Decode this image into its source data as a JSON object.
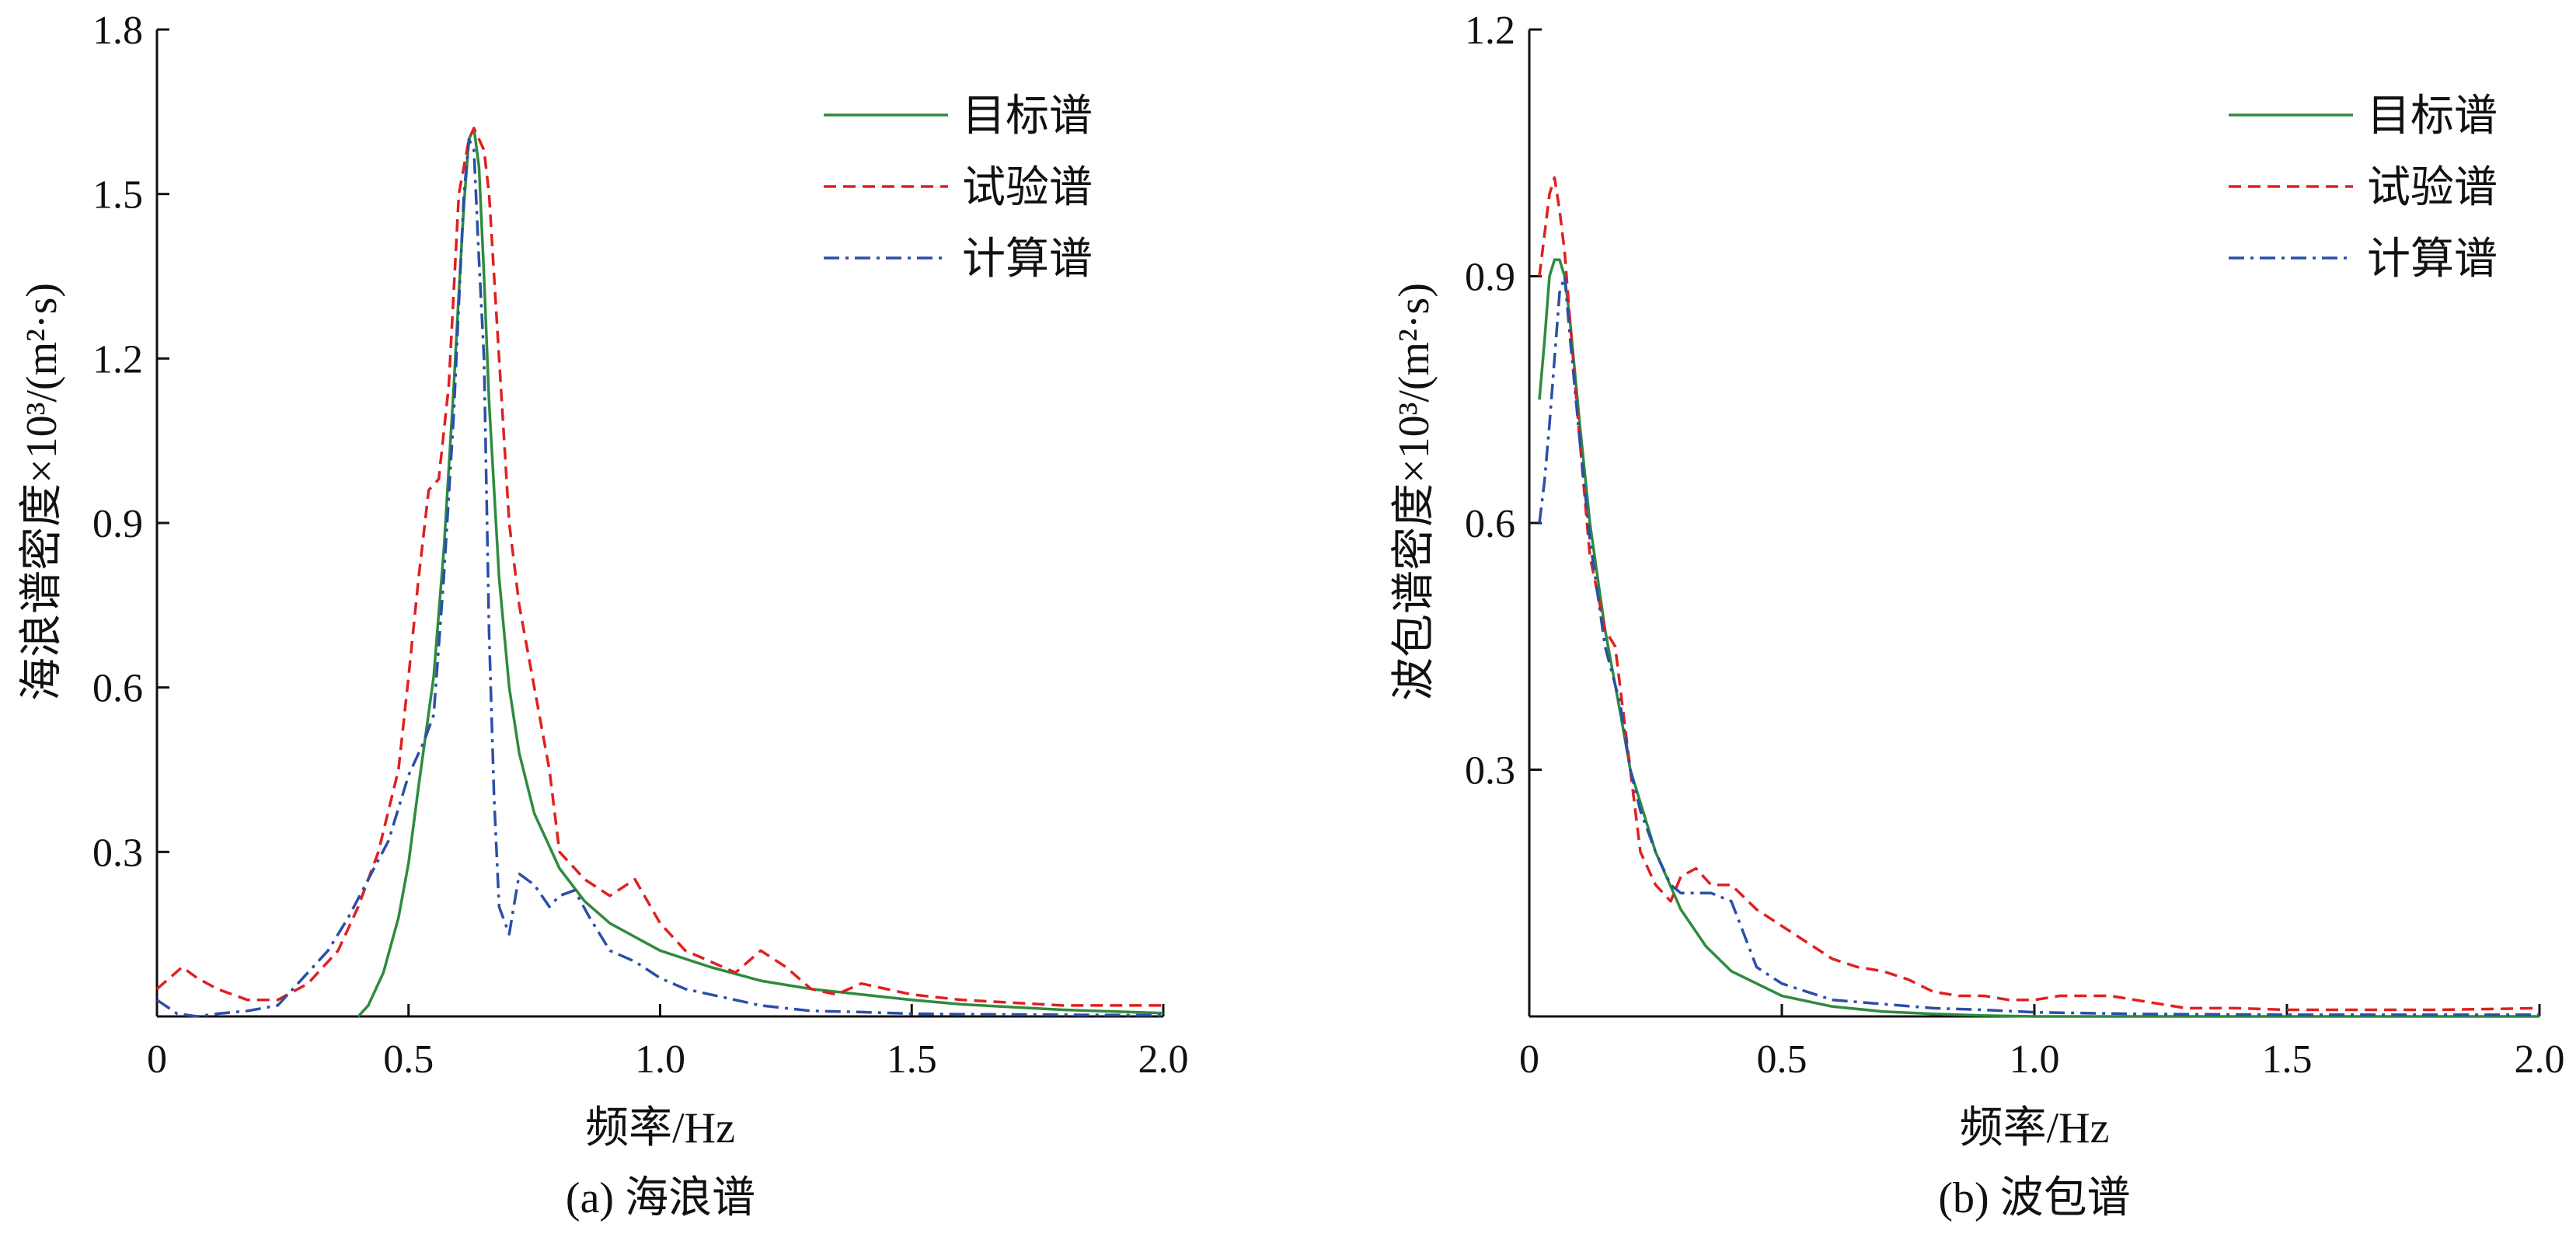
{
  "chart_data": [
    {
      "type": "line",
      "panel_label": "(a) 海浪谱",
      "xlabel": "频率/Hz",
      "ylabel": "海浪谱密度×10³/(m²·s)",
      "xlim": [
        0,
        2.0
      ],
      "ylim": [
        0,
        1.8
      ],
      "xticks": [
        "0",
        "0.5",
        "1.0",
        "1.5",
        "2.0"
      ],
      "yticks": [
        "0.3",
        "0.6",
        "0.9",
        "1.2",
        "1.5",
        "1.8"
      ],
      "legend": [
        "目标谱",
        "试验谱",
        "计算谱"
      ],
      "series": [
        {
          "name": "目标谱",
          "color": "#2e8b3e",
          "dash": "solid",
          "x": [
            0.4,
            0.42,
            0.45,
            0.48,
            0.5,
            0.52,
            0.55,
            0.57,
            0.59,
            0.6,
            0.61,
            0.62,
            0.63,
            0.64,
            0.65,
            0.66,
            0.68,
            0.7,
            0.72,
            0.75,
            0.8,
            0.85,
            0.9,
            1.0,
            1.1,
            1.2,
            1.3,
            1.4,
            1.5,
            1.6,
            1.8,
            2.0
          ],
          "y": [
            0.0,
            0.02,
            0.08,
            0.18,
            0.28,
            0.42,
            0.62,
            0.85,
            1.15,
            1.32,
            1.48,
            1.6,
            1.62,
            1.55,
            1.35,
            1.12,
            0.8,
            0.6,
            0.48,
            0.37,
            0.27,
            0.21,
            0.17,
            0.12,
            0.09,
            0.065,
            0.05,
            0.04,
            0.03,
            0.022,
            0.012,
            0.006
          ]
        },
        {
          "name": "试验谱",
          "color": "#e02020",
          "dash": "dashed",
          "x": [
            0.0,
            0.05,
            0.08,
            0.12,
            0.18,
            0.24,
            0.3,
            0.36,
            0.4,
            0.44,
            0.48,
            0.5,
            0.52,
            0.54,
            0.56,
            0.58,
            0.6,
            0.62,
            0.63,
            0.64,
            0.65,
            0.66,
            0.68,
            0.7,
            0.72,
            0.75,
            0.78,
            0.8,
            0.85,
            0.9,
            0.95,
            1.0,
            1.05,
            1.1,
            1.15,
            1.2,
            1.25,
            1.3,
            1.35,
            1.4,
            1.5,
            1.6,
            1.8,
            2.0
          ],
          "y": [
            0.05,
            0.09,
            0.07,
            0.05,
            0.03,
            0.03,
            0.06,
            0.12,
            0.2,
            0.3,
            0.45,
            0.62,
            0.8,
            0.96,
            0.98,
            1.15,
            1.5,
            1.6,
            1.62,
            1.6,
            1.58,
            1.5,
            1.2,
            0.9,
            0.75,
            0.6,
            0.45,
            0.3,
            0.25,
            0.22,
            0.25,
            0.17,
            0.12,
            0.1,
            0.08,
            0.12,
            0.09,
            0.05,
            0.04,
            0.06,
            0.04,
            0.03,
            0.02,
            0.02
          ]
        },
        {
          "name": "计算谱",
          "color": "#2a4fa8",
          "dash": "dashdot",
          "x": [
            0.0,
            0.04,
            0.08,
            0.12,
            0.18,
            0.24,
            0.3,
            0.34,
            0.38,
            0.42,
            0.46,
            0.5,
            0.53,
            0.55,
            0.57,
            0.59,
            0.6,
            0.61,
            0.62,
            0.63,
            0.64,
            0.65,
            0.66,
            0.67,
            0.68,
            0.7,
            0.72,
            0.75,
            0.78,
            0.8,
            0.83,
            0.86,
            0.9,
            0.95,
            1.0,
            1.05,
            1.1,
            1.2,
            1.3,
            1.4,
            1.5,
            1.6,
            1.8,
            2.0
          ],
          "y": [
            0.03,
            0.005,
            0.0,
            0.005,
            0.01,
            0.02,
            0.08,
            0.12,
            0.18,
            0.25,
            0.32,
            0.44,
            0.5,
            0.55,
            0.8,
            1.1,
            1.3,
            1.5,
            1.6,
            1.58,
            1.38,
            1.2,
            0.7,
            0.4,
            0.2,
            0.15,
            0.26,
            0.24,
            0.2,
            0.22,
            0.23,
            0.18,
            0.12,
            0.1,
            0.07,
            0.05,
            0.04,
            0.02,
            0.01,
            0.008,
            0.005,
            0.004,
            0.003,
            0.002
          ]
        }
      ]
    },
    {
      "type": "line",
      "panel_label": "(b) 波包谱",
      "xlabel": "频率/Hz",
      "ylabel": "波包谱密度×10³/(m²·s)",
      "xlim": [
        0,
        2.0
      ],
      "ylim": [
        0,
        1.2
      ],
      "xticks": [
        "0",
        "0.5",
        "1.0",
        "1.5",
        "2.0"
      ],
      "yticks": [
        "0.3",
        "0.6",
        "0.9",
        "1.2"
      ],
      "legend": [
        "目标谱",
        "试验谱",
        "计算谱"
      ],
      "series": [
        {
          "name": "目标谱",
          "color": "#2e8b3e",
          "dash": "solid",
          "x": [
            0.02,
            0.03,
            0.04,
            0.05,
            0.06,
            0.07,
            0.08,
            0.1,
            0.12,
            0.15,
            0.18,
            0.2,
            0.25,
            0.3,
            0.35,
            0.4,
            0.5,
            0.6,
            0.7,
            0.8,
            0.9,
            1.0,
            1.2,
            1.5,
            2.0
          ],
          "y": [
            0.75,
            0.82,
            0.9,
            0.92,
            0.92,
            0.9,
            0.85,
            0.72,
            0.6,
            0.47,
            0.37,
            0.3,
            0.2,
            0.13,
            0.085,
            0.055,
            0.025,
            0.012,
            0.006,
            0.003,
            0.001,
            0.0,
            0.0,
            0.0,
            0.0
          ]
        },
        {
          "name": "试验谱",
          "color": "#e02020",
          "dash": "dashed",
          "x": [
            0.02,
            0.03,
            0.04,
            0.05,
            0.06,
            0.07,
            0.08,
            0.1,
            0.12,
            0.15,
            0.17,
            0.19,
            0.2,
            0.22,
            0.25,
            0.28,
            0.3,
            0.33,
            0.36,
            0.4,
            0.45,
            0.5,
            0.55,
            0.6,
            0.65,
            0.7,
            0.75,
            0.8,
            0.85,
            0.9,
            0.95,
            1.0,
            1.05,
            1.1,
            1.15,
            1.2,
            1.3,
            1.4,
            1.5,
            1.6,
            1.8,
            2.0
          ],
          "y": [
            0.9,
            0.95,
            1.0,
            1.02,
            0.98,
            0.93,
            0.85,
            0.7,
            0.56,
            0.47,
            0.45,
            0.35,
            0.3,
            0.2,
            0.16,
            0.14,
            0.17,
            0.18,
            0.16,
            0.16,
            0.13,
            0.11,
            0.09,
            0.07,
            0.06,
            0.055,
            0.045,
            0.03,
            0.025,
            0.025,
            0.02,
            0.02,
            0.025,
            0.025,
            0.025,
            0.02,
            0.01,
            0.01,
            0.008,
            0.008,
            0.008,
            0.01
          ]
        },
        {
          "name": "计算谱",
          "color": "#2a4fa8",
          "dash": "dashdot",
          "x": [
            0.02,
            0.03,
            0.04,
            0.05,
            0.06,
            0.07,
            0.08,
            0.1,
            0.12,
            0.15,
            0.18,
            0.2,
            0.22,
            0.25,
            0.28,
            0.3,
            0.33,
            0.36,
            0.4,
            0.45,
            0.5,
            0.55,
            0.6,
            0.7,
            0.8,
            0.9,
            1.0,
            1.2,
            1.5,
            2.0
          ],
          "y": [
            0.6,
            0.65,
            0.72,
            0.8,
            0.88,
            0.9,
            0.83,
            0.7,
            0.58,
            0.45,
            0.38,
            0.3,
            0.25,
            0.2,
            0.16,
            0.15,
            0.15,
            0.15,
            0.14,
            0.06,
            0.04,
            0.03,
            0.02,
            0.015,
            0.01,
            0.008,
            0.005,
            0.003,
            0.002,
            0.002
          ]
        }
      ]
    }
  ]
}
